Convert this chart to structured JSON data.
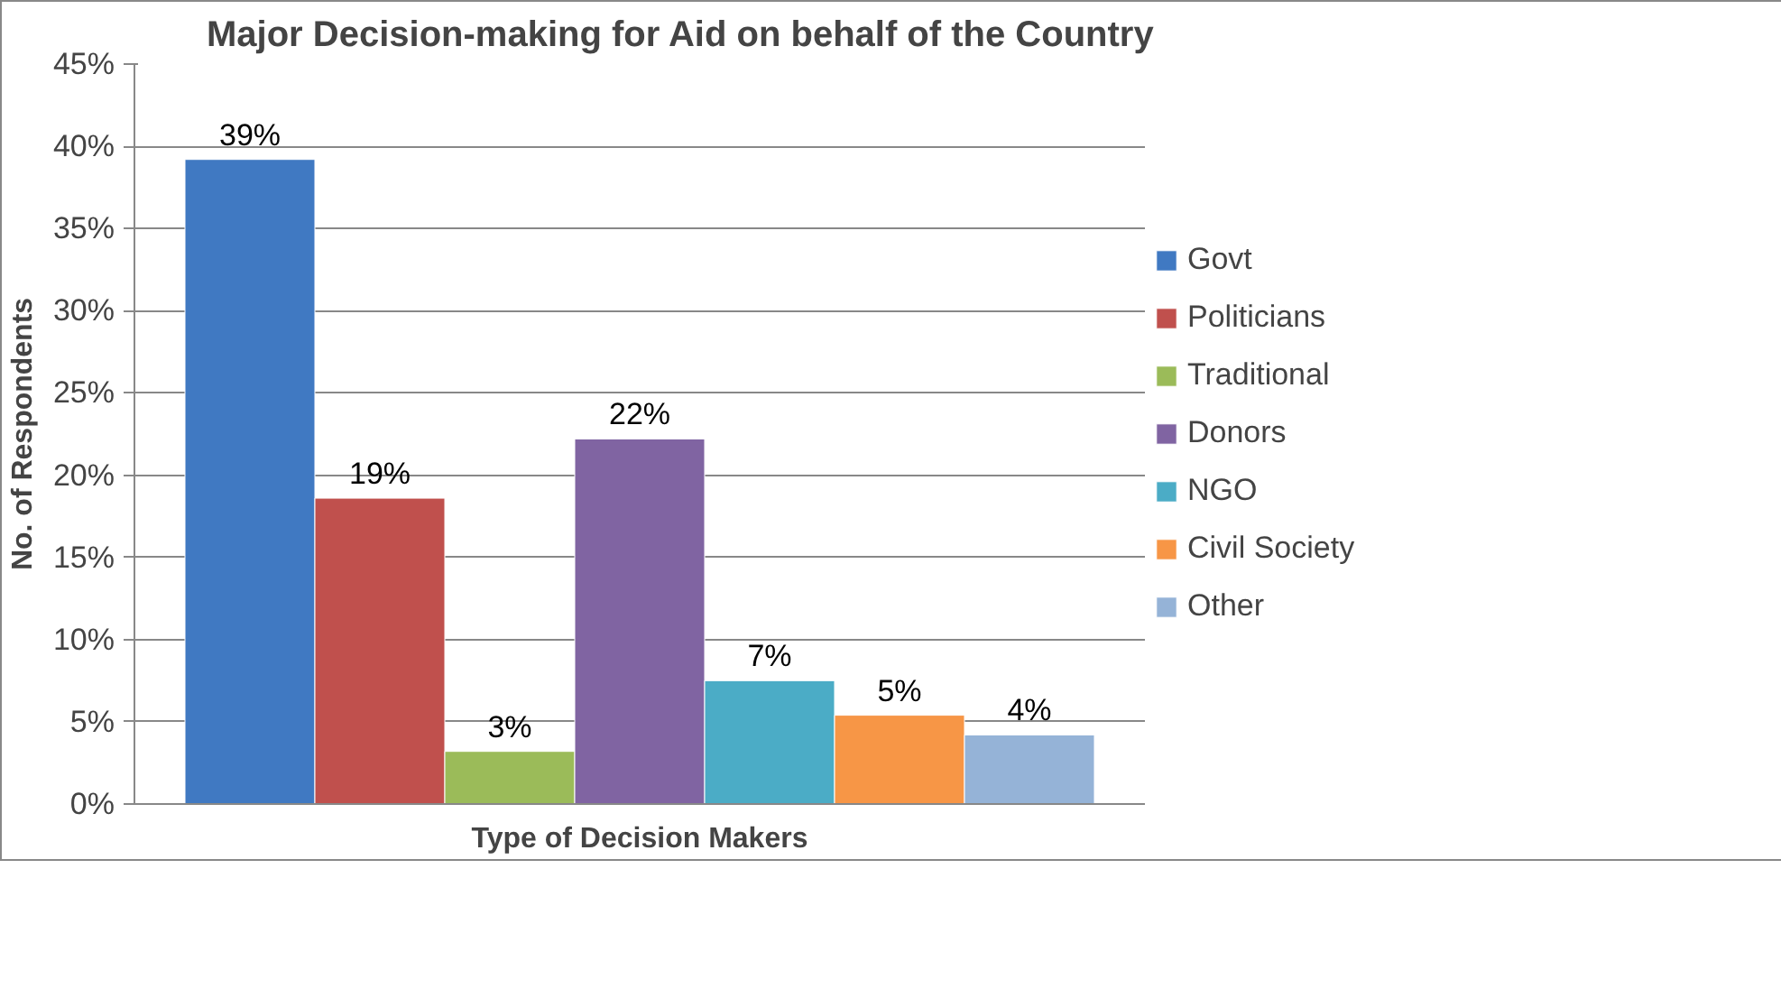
{
  "chart_data": {
    "type": "bar",
    "title": "Major Decision-making for Aid on behalf of the Country",
    "xlabel": "Type of Decision Makers",
    "ylabel": "No. of Respondents",
    "categories": [
      null
    ],
    "series": [
      {
        "name": "Govt",
        "color": "#4079c2",
        "values": [
          39.2
        ],
        "value_labels": [
          "39%"
        ]
      },
      {
        "name": "Politicians",
        "color": "#c0504d",
        "values": [
          18.6
        ],
        "value_labels": [
          "19%"
        ]
      },
      {
        "name": "Traditional",
        "color": "#9bbb59",
        "values": [
          3.2
        ],
        "value_labels": [
          "3%"
        ]
      },
      {
        "name": "Donors",
        "color": "#8064a2",
        "values": [
          22.2
        ],
        "value_labels": [
          "22%"
        ]
      },
      {
        "name": "NGO",
        "color": "#4bacc6",
        "values": [
          7.5
        ],
        "value_labels": [
          "7%"
        ]
      },
      {
        "name": "Civil Society",
        "color": "#f79646",
        "values": [
          5.4
        ],
        "value_labels": [
          "5%"
        ]
      },
      {
        "name": "Other",
        "color": "#95b3d7",
        "values": [
          4.2
        ],
        "value_labels": [
          "4%"
        ]
      }
    ],
    "ylim": [
      0,
      45
    ],
    "yticks": [
      {
        "value": 0,
        "label": "0%"
      },
      {
        "value": 5,
        "label": "5%"
      },
      {
        "value": 10,
        "label": "10%"
      },
      {
        "value": 15,
        "label": "15%"
      },
      {
        "value": 20,
        "label": "20%"
      },
      {
        "value": 25,
        "label": "25%"
      },
      {
        "value": 30,
        "label": "30%"
      },
      {
        "value": 35,
        "label": "35%"
      },
      {
        "value": 40,
        "label": "40%"
      },
      {
        "value": 45,
        "label": "45%"
      }
    ],
    "grid": "y",
    "legend": "right",
    "tick_labels": "y"
  }
}
